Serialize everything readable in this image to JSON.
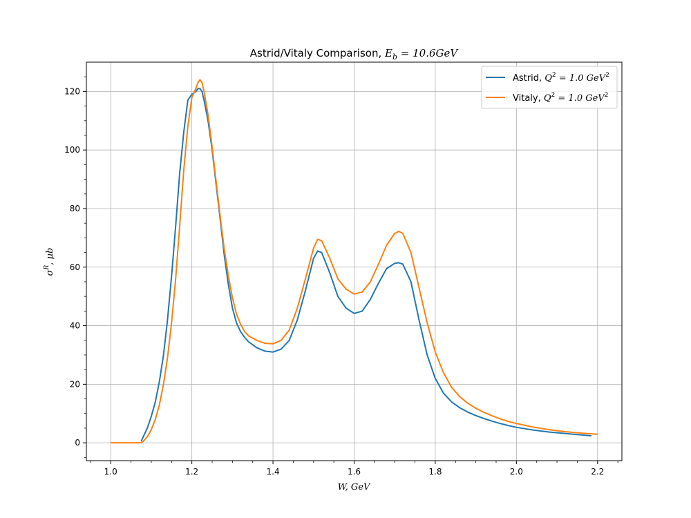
{
  "chart_data": {
    "type": "line",
    "title_main": "Astrid/Vitaly Comparison, ",
    "title_math": "E",
    "title_math_sub": "b",
    "title_math_rest": " = 10.6GeV",
    "xlabel": "W, GeV",
    "ylabel_sym": "σ",
    "ylabel_sup": "R",
    "ylabel_rest": ", μb",
    "xlim": [
      0.94,
      2.26
    ],
    "ylim": [
      -6.1,
      130.0
    ],
    "xticks": [
      1.0,
      1.2,
      1.4,
      1.6,
      1.8,
      2.0,
      2.2
    ],
    "xtick_labels": [
      "1.0",
      "1.2",
      "1.4",
      "1.6",
      "1.8",
      "2.0",
      "2.2"
    ],
    "yticks": [
      0,
      20,
      40,
      60,
      80,
      100,
      120
    ],
    "ytick_labels": [
      "0",
      "20",
      "40",
      "60",
      "80",
      "100",
      "120"
    ],
    "grid": true,
    "legend_position": "top-right",
    "series": [
      {
        "name": "Astrid, ",
        "legend_math": "Q",
        "legend_sup": "2",
        "legend_rest": " = 1.0 GeV",
        "legend_sup2": "2",
        "color": "#1f77b4",
        "x": [
          1.075,
          1.08,
          1.09,
          1.1,
          1.11,
          1.12,
          1.13,
          1.14,
          1.15,
          1.16,
          1.17,
          1.18,
          1.19,
          1.2,
          1.21,
          1.215,
          1.22,
          1.225,
          1.23,
          1.24,
          1.25,
          1.26,
          1.27,
          1.28,
          1.29,
          1.3,
          1.31,
          1.32,
          1.33,
          1.34,
          1.36,
          1.38,
          1.4,
          1.42,
          1.44,
          1.46,
          1.48,
          1.5,
          1.51,
          1.52,
          1.54,
          1.56,
          1.58,
          1.6,
          1.62,
          1.64,
          1.66,
          1.68,
          1.7,
          1.71,
          1.72,
          1.74,
          1.76,
          1.78,
          1.8,
          1.82,
          1.84,
          1.86,
          1.88,
          1.9,
          1.92,
          1.94,
          1.96,
          1.98,
          2.0,
          2.04,
          2.08,
          2.12,
          2.16,
          2.185
        ],
        "y": [
          0.5,
          2.0,
          5.0,
          9.0,
          14.0,
          21.0,
          30.0,
          42.0,
          57.0,
          74.0,
          92.0,
          106.0,
          117.0,
          119.0,
          120.0,
          121.0,
          121.0,
          120.0,
          117.0,
          110.0,
          100.0,
          88.0,
          76.0,
          64.0,
          54.0,
          46.0,
          41.0,
          38.0,
          36.0,
          34.5,
          32.5,
          31.3,
          31.0,
          32.0,
          35.0,
          42.0,
          52.0,
          63.0,
          65.5,
          65.0,
          58.0,
          50.0,
          46.0,
          44.2,
          45.0,
          49.0,
          54.5,
          59.5,
          61.3,
          61.5,
          61.0,
          55.0,
          42.0,
          30.0,
          22.0,
          17.0,
          14.0,
          12.0,
          10.5,
          9.3,
          8.3,
          7.4,
          6.6,
          5.9,
          5.3,
          4.4,
          3.7,
          3.2,
          2.7,
          2.4
        ]
      },
      {
        "name": "Vitaly, ",
        "legend_math": "Q",
        "legend_sup": "2",
        "legend_rest": " = 1.0 GeV",
        "legend_sup2": "2",
        "color": "#ff7f0e",
        "x": [
          1.0,
          1.02,
          1.04,
          1.06,
          1.075,
          1.08,
          1.09,
          1.1,
          1.11,
          1.12,
          1.13,
          1.14,
          1.15,
          1.16,
          1.17,
          1.18,
          1.19,
          1.2,
          1.21,
          1.215,
          1.22,
          1.225,
          1.23,
          1.24,
          1.25,
          1.26,
          1.27,
          1.28,
          1.29,
          1.3,
          1.31,
          1.32,
          1.33,
          1.34,
          1.36,
          1.38,
          1.4,
          1.42,
          1.44,
          1.46,
          1.48,
          1.5,
          1.51,
          1.52,
          1.54,
          1.56,
          1.58,
          1.6,
          1.62,
          1.64,
          1.66,
          1.68,
          1.7,
          1.71,
          1.72,
          1.74,
          1.76,
          1.78,
          1.8,
          1.82,
          1.84,
          1.86,
          1.88,
          1.9,
          1.92,
          1.94,
          1.96,
          1.98,
          2.0,
          2.04,
          2.08,
          2.12,
          2.16,
          2.2
        ],
        "y": [
          0,
          0,
          0,
          0,
          0,
          0.5,
          2.0,
          4.5,
          8.0,
          13.0,
          20.0,
          29.0,
          41.0,
          56.0,
          74.0,
          93.0,
          108.0,
          118.0,
          121.0,
          123.0,
          124.0,
          123.0,
          120.0,
          112.0,
          101.0,
          89.0,
          77.0,
          66.0,
          57.0,
          49.5,
          44.0,
          40.5,
          38.0,
          36.5,
          35.0,
          34.0,
          33.8,
          35.0,
          38.5,
          46.0,
          56.0,
          66.5,
          69.5,
          69.0,
          63.0,
          56.0,
          52.5,
          50.8,
          51.5,
          55.0,
          61.0,
          67.5,
          71.5,
          72.2,
          71.5,
          65.0,
          53.0,
          41.0,
          31.0,
          24.0,
          19.0,
          15.8,
          13.5,
          11.8,
          10.4,
          9.2,
          8.2,
          7.3,
          6.6,
          5.4,
          4.5,
          3.8,
          3.3,
          2.9
        ]
      }
    ]
  }
}
